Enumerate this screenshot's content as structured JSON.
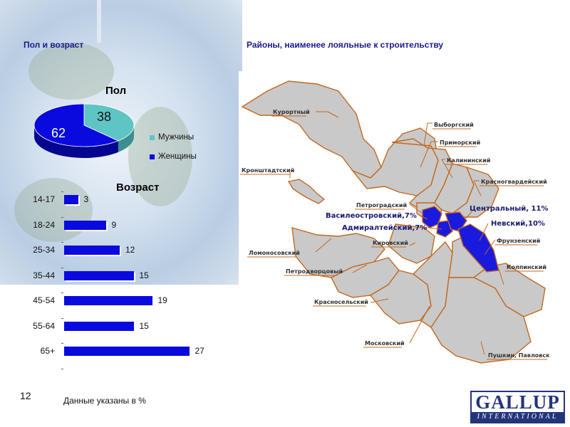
{
  "headers": {
    "left": "Пол и возраст",
    "right": "Районы, наименее лояльные к строительству"
  },
  "colors": {
    "men": "#5fc4c4",
    "women": "#0a0adf",
    "map_fill": "#c9c9c9",
    "map_border": "#c4681f",
    "highlight": "#1a1adf"
  },
  "chart_data": [
    {
      "type": "pie",
      "title": "Пол",
      "categories": [
        "Мужчины",
        "Женщины"
      ],
      "values": [
        38,
        62
      ],
      "legend": "right"
    },
    {
      "type": "bar",
      "orientation": "horizontal",
      "title": "Возраст",
      "categories": [
        "14-17",
        "18-24",
        "25-34",
        "35-44",
        "45-54",
        "55-64",
        "65+"
      ],
      "values": [
        3,
        9,
        12,
        15,
        19,
        15,
        27
      ],
      "xlim": [
        0,
        30
      ]
    }
  ],
  "pie_labels": {
    "men": "38",
    "women": "62"
  },
  "legend": {
    "men": "Мужчины",
    "women": "Женщины"
  },
  "map": {
    "districts": [
      {
        "key": "kurortny",
        "label": "Курортный"
      },
      {
        "key": "vyborgsky",
        "label": "Выборгский"
      },
      {
        "key": "primorsky",
        "label": "Приморский"
      },
      {
        "key": "kalininsky",
        "label": "Калининский"
      },
      {
        "key": "krasnogvardeysky",
        "label": "Красногвардейский"
      },
      {
        "key": "kronshtadtsky",
        "label": "Кронштадтский"
      },
      {
        "key": "petrogradsky",
        "label": "Петроградский"
      },
      {
        "key": "vasileostrovsky",
        "label": "Василеостровский,7%",
        "highlighted": true
      },
      {
        "key": "tsentralny",
        "label": "Центральный, 11%",
        "highlighted": true
      },
      {
        "key": "admiralteysky",
        "label": "Адмиралтейский,7%",
        "highlighted": true
      },
      {
        "key": "nevsky",
        "label": "Невский,10%",
        "highlighted": true
      },
      {
        "key": "frunzensky",
        "label": "Фрунзенский"
      },
      {
        "key": "kirovsky",
        "label": "Кировский"
      },
      {
        "key": "lomonosovsky",
        "label": "Ломоносовский"
      },
      {
        "key": "kolpinsky",
        "label": "Колпинский"
      },
      {
        "key": "petrodvortsovy",
        "label": "Петродворцовый"
      },
      {
        "key": "krasnoselsky",
        "label": "Красносельский"
      },
      {
        "key": "moskovsky",
        "label": "Московский"
      },
      {
        "key": "pushkinsky",
        "label": "Пушкин, Павловск"
      }
    ]
  },
  "footer": {
    "note": "Данные указаны в %",
    "page_number": "12"
  },
  "logo": {
    "top": "GALLUP",
    "bottom": "INTERNATIONAL"
  }
}
